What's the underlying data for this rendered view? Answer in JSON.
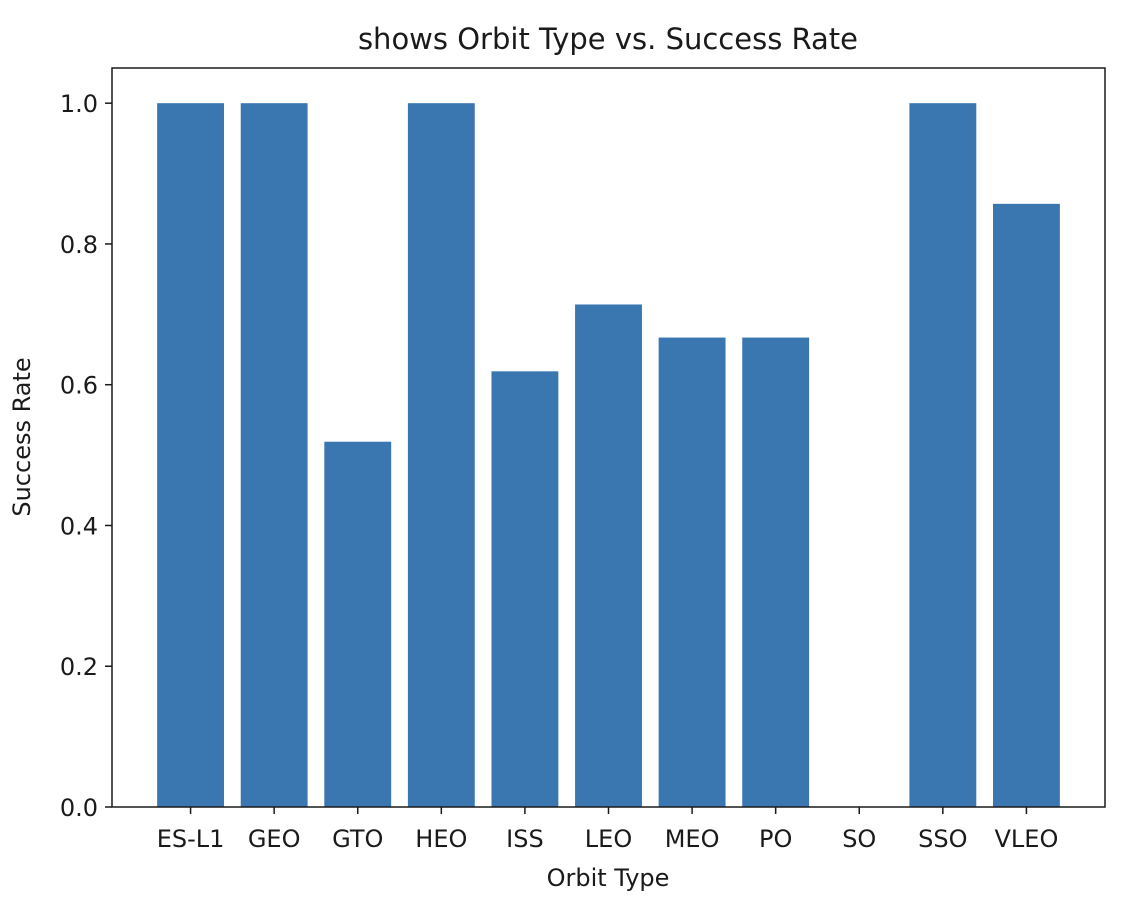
{
  "chart_data": {
    "type": "bar",
    "title": "shows Orbit Type vs. Success Rate",
    "xlabel": "Orbit Type",
    "ylabel": "Success Rate",
    "categories": [
      "ES-L1",
      "GEO",
      "GTO",
      "HEO",
      "ISS",
      "LEO",
      "MEO",
      "PO",
      "SO",
      "SSO",
      "VLEO"
    ],
    "values": [
      1.0,
      1.0,
      0.519,
      1.0,
      0.619,
      0.714,
      0.667,
      0.667,
      0.0,
      1.0,
      0.857
    ],
    "ylim": [
      0,
      1.05
    ],
    "yticks": [
      0.0,
      0.2,
      0.4,
      0.6,
      0.8,
      1.0
    ],
    "ytick_labels": [
      "0.0",
      "0.2",
      "0.4",
      "0.6",
      "0.8",
      "1.0"
    ],
    "bar_color": "#3a76af",
    "grid": false,
    "legend": "none"
  }
}
